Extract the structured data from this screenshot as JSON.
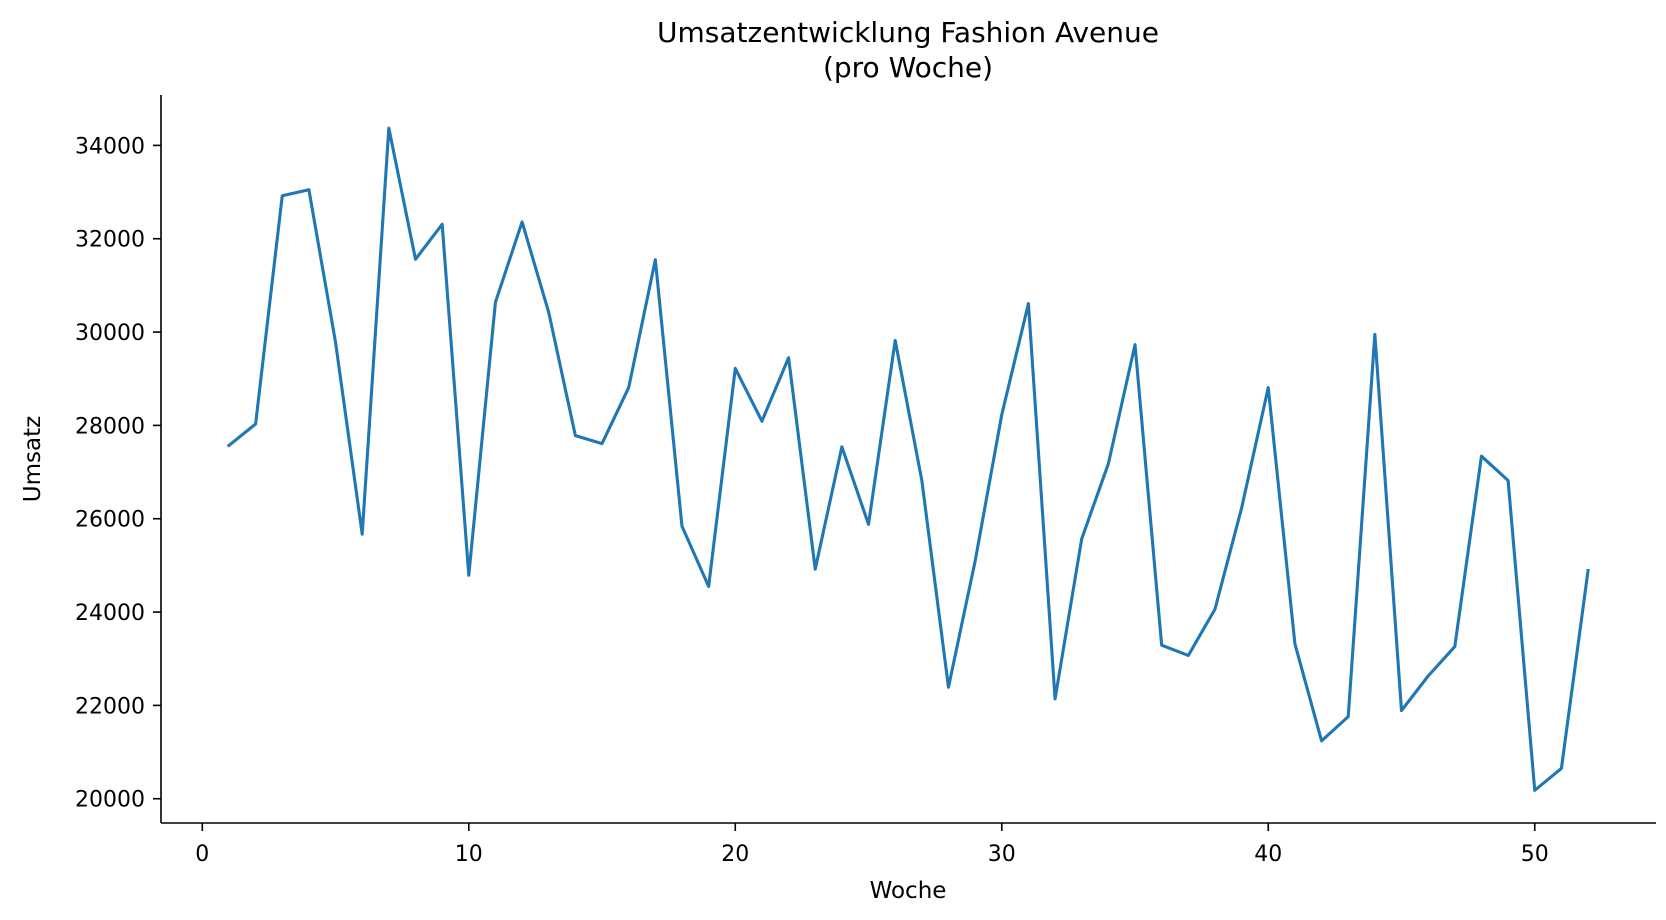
{
  "chart_data": {
    "type": "line",
    "title": "Umsatzentwicklung Fashion Avenue",
    "subtitle": "(pro Woche)",
    "xlabel": "Woche",
    "ylabel": "Umsatz",
    "xlim": [
      -1.55,
      54.55
    ],
    "ylim": [
      19480,
      35080
    ],
    "xticks": [
      0,
      10,
      20,
      30,
      40,
      50
    ],
    "yticks": [
      20000,
      22000,
      24000,
      26000,
      28000,
      30000,
      32000,
      34000
    ],
    "grid": false,
    "series": [
      {
        "color": "#1f77b4",
        "x": [
          1,
          2,
          3,
          4,
          5,
          6,
          7,
          8,
          9,
          10,
          11,
          12,
          13,
          14,
          15,
          16,
          17,
          18,
          19,
          20,
          21,
          22,
          23,
          24,
          25,
          26,
          27,
          28,
          29,
          30,
          31,
          32,
          33,
          34,
          35,
          36,
          37,
          38,
          39,
          40,
          41,
          42,
          43,
          44,
          45,
          46,
          47,
          48,
          49,
          50,
          51,
          52
        ],
        "y": [
          27570,
          28030,
          32920,
          33050,
          29780,
          25670,
          34370,
          31560,
          32310,
          24790,
          30640,
          32360,
          30420,
          27780,
          27610,
          28810,
          31550,
          25840,
          24550,
          29220,
          28090,
          29450,
          24920,
          27540,
          25880,
          29820,
          26820,
          22390,
          25090,
          28230,
          30610,
          22140,
          25570,
          27180,
          29730,
          23290,
          23070,
          24060,
          26230,
          28810,
          23320,
          21240,
          21760,
          29950,
          21890,
          22630,
          23260,
          27340,
          26820,
          20180,
          20650,
          24890
        ]
      }
    ]
  }
}
